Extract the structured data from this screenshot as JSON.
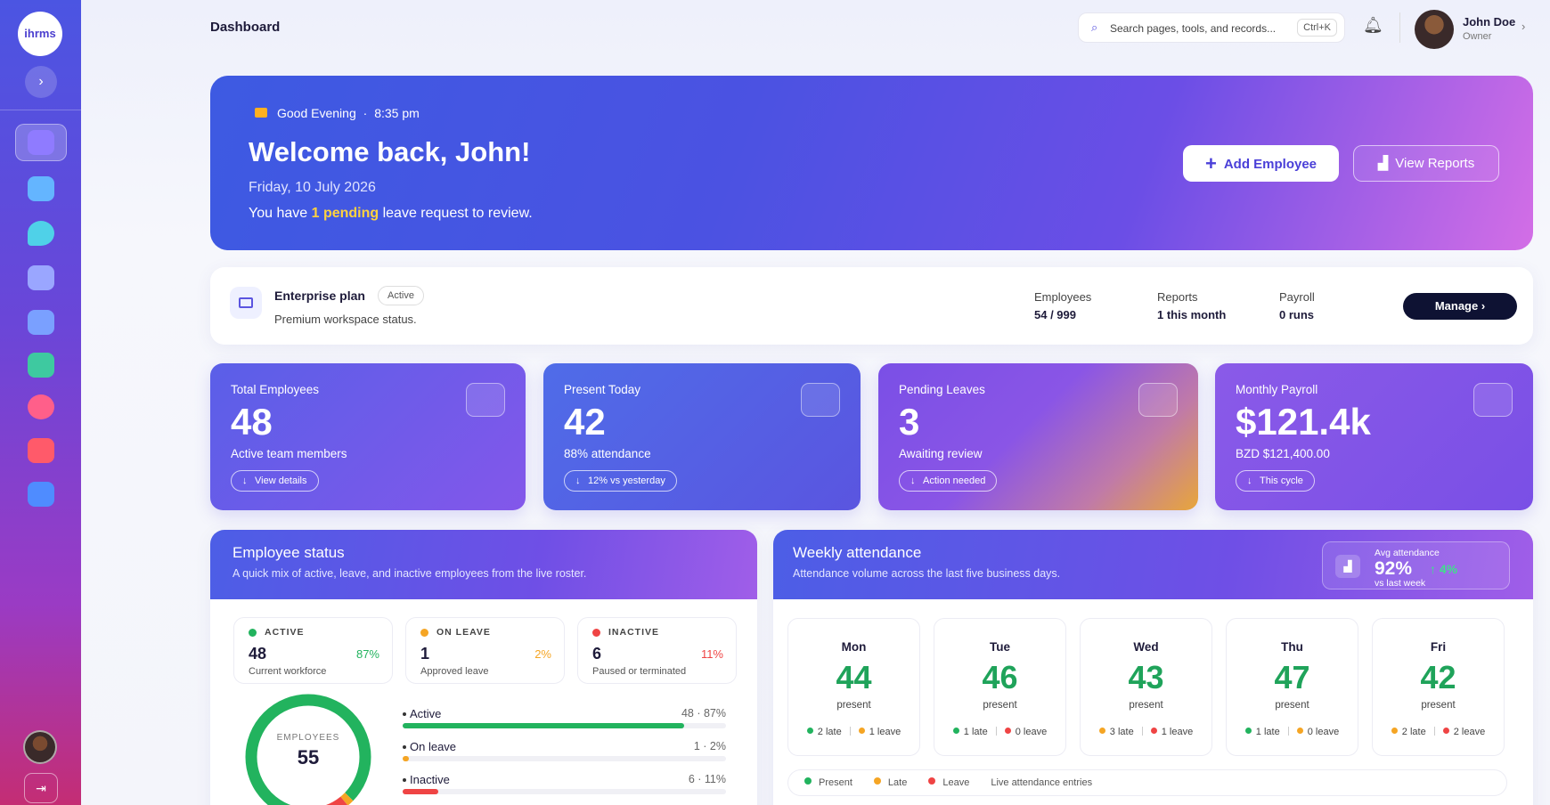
{
  "sidebar": {
    "logo": "ihrms"
  },
  "header": {
    "title": "Dashboard",
    "search_placeholder": "Search pages, tools, and records...",
    "shortcut": "Ctrl+K",
    "user": {
      "name": "John Doe",
      "role": "Owner"
    }
  },
  "hero": {
    "greeting": "Good Evening",
    "separator": "·",
    "time": "8:35 pm",
    "title": "Welcome back, John!",
    "date": "Friday, 10 July 2026",
    "message": {
      "before": "You have ",
      "highlight": "1 pending",
      "after": " leave request to review."
    },
    "actions": [
      "Add Employee",
      "View Reports"
    ]
  },
  "plan": {
    "name": "Enterprise plan",
    "status": "Active",
    "description": "Premium workspace status.",
    "stats": [
      {
        "label": "Employees",
        "value": "54 / 999"
      },
      {
        "label": "Reports",
        "value": "1 this month"
      },
      {
        "label": "Payroll",
        "value": "0 runs"
      }
    ],
    "action": "Manage"
  },
  "stat_cards": [
    {
      "label": "Total Employees",
      "value": 48,
      "subtitle": "Active team members",
      "badge": "View details"
    },
    {
      "label": "Present Today",
      "value": 42,
      "subtitle": "88% attendance",
      "badge": "12% vs yesterday"
    },
    {
      "label": "Pending Leaves",
      "value": 3,
      "subtitle": "Awaiting review",
      "badge": "Action needed"
    },
    {
      "label": "Monthly Payroll",
      "value": "$121.4k",
      "subtitle": "BZD $121,400.00",
      "badge": "This cycle"
    }
  ],
  "employee_status": {
    "title": "Employee status",
    "subtitle": "A quick mix of active, leave, and inactive employees from the live roster.",
    "cards": [
      {
        "label": "ACTIVE",
        "count": 48,
        "percent": "87%",
        "note": "Current workforce",
        "color": "#22b35e"
      },
      {
        "label": "ON LEAVE",
        "count": 1,
        "percent": "2%",
        "note": "Approved leave",
        "color": "#f5a524"
      },
      {
        "label": "INACTIVE",
        "count": 6,
        "percent": "11%",
        "note": "Paused or terminated",
        "color": "#ef4444"
      }
    ],
    "donut": {
      "label": "EMPLOYEES",
      "total": 55
    },
    "bars": [
      {
        "label": "Active",
        "value_label": "48 · 87%",
        "percent": 87,
        "color": "#22b35e"
      },
      {
        "label": "On leave",
        "value_label": "1 · 2%",
        "percent": 2,
        "color": "#f5a524"
      },
      {
        "label": "Inactive",
        "value_label": "6 · 11%",
        "percent": 11,
        "color": "#ef4444"
      }
    ]
  },
  "weekly_attendance": {
    "title": "Weekly attendance",
    "subtitle": "Attendance volume across the last five business days.",
    "avg": {
      "label": "Avg attendance",
      "value": "92%",
      "change": "↑ 4%",
      "note": "vs last week"
    },
    "present_label": "present",
    "days": [
      {
        "day": "Mon",
        "present": 44,
        "late": "2 late",
        "leave": "1 leave",
        "dots": [
          "#22b35e",
          "#f5a524"
        ]
      },
      {
        "day": "Tue",
        "present": 46,
        "late": "1 late",
        "leave": "0 leave",
        "dots": [
          "#22b35e",
          "#ef4444"
        ]
      },
      {
        "day": "Wed",
        "present": 43,
        "late": "3 late",
        "leave": "1 leave",
        "dots": [
          "#f5a524",
          "#ef4444"
        ]
      },
      {
        "day": "Thu",
        "present": 47,
        "late": "1 late",
        "leave": "0 leave",
        "dots": [
          "#22b35e",
          "#f5a524"
        ]
      },
      {
        "day": "Fri",
        "present": 42,
        "late": "2 late",
        "leave": "2 leave",
        "dots": [
          "#f5a524",
          "#ef4444"
        ]
      }
    ],
    "legend": [
      {
        "label": "Present",
        "color": "#22b35e"
      },
      {
        "label": "Late",
        "color": "#f5a524"
      },
      {
        "label": "Leave",
        "color": "#ef4444"
      }
    ],
    "legend_note": "Live attendance entries"
  }
}
